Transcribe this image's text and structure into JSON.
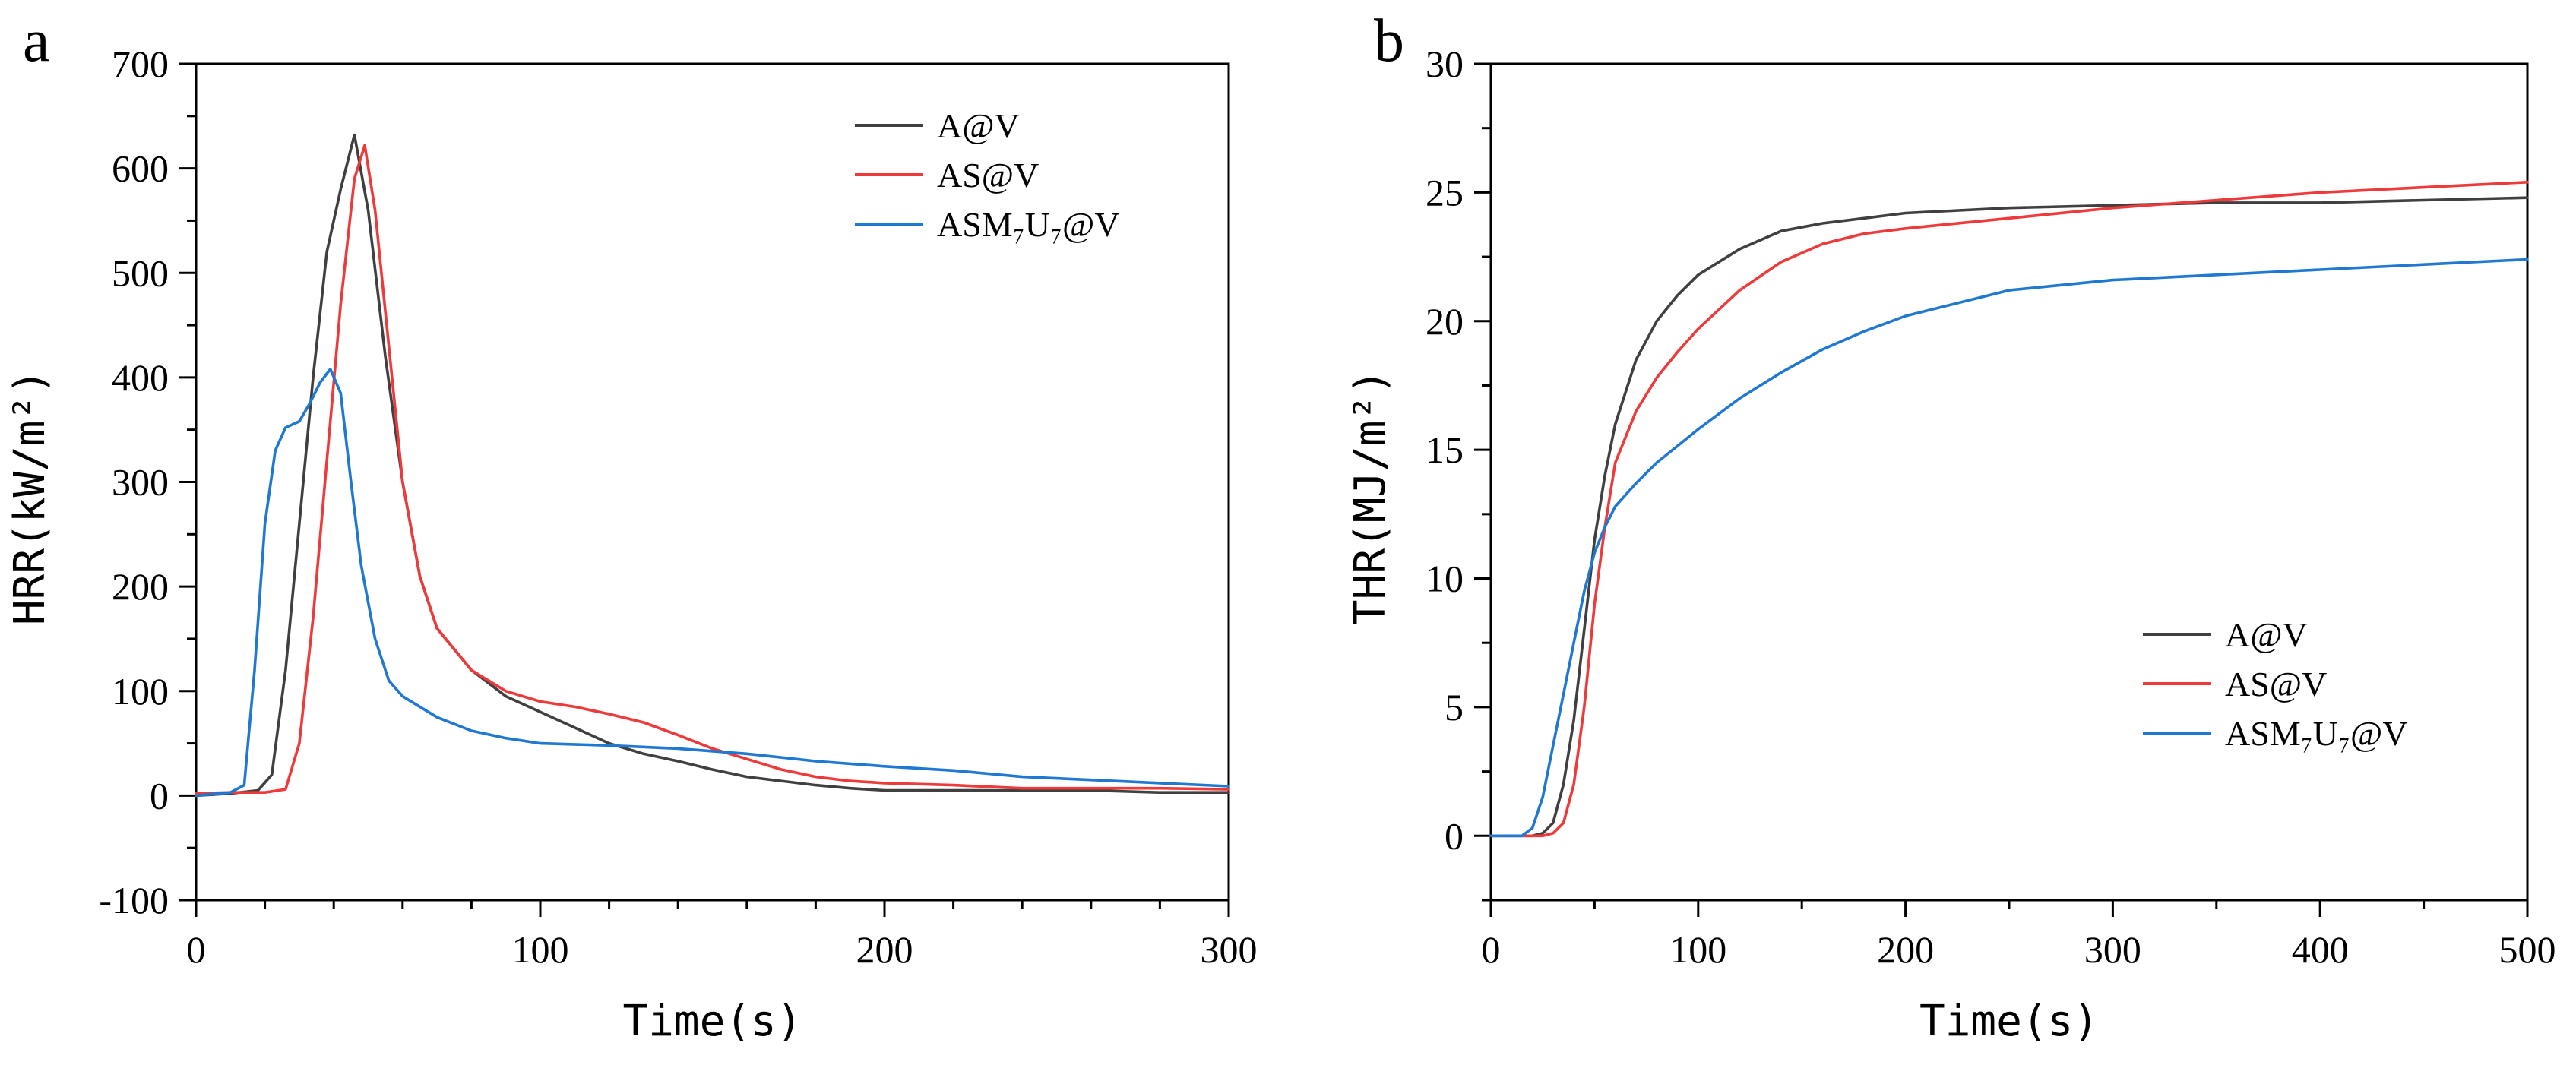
{
  "chart_data": [
    {
      "panel": "a",
      "type": "line",
      "xlabel": "Time(s)",
      "ylabel": "HRR(kW/m²)",
      "xlim": [
        0,
        300
      ],
      "ylim": [
        -100,
        700
      ],
      "xticks": [
        0,
        100,
        200,
        300
      ],
      "yticks": [
        -100,
        0,
        100,
        200,
        300,
        400,
        500,
        600,
        700
      ],
      "grid": false,
      "legend_position": "top-right",
      "series": [
        {
          "name": "A@V",
          "color": "#404040",
          "x": [
            0,
            10,
            18,
            22,
            26,
            30,
            34,
            38,
            42,
            46,
            50,
            55,
            60,
            65,
            70,
            80,
            90,
            100,
            110,
            120,
            130,
            140,
            150,
            160,
            170,
            180,
            190,
            200,
            220,
            240,
            260,
            280,
            300
          ],
          "y": [
            0,
            2,
            5,
            20,
            120,
            260,
            400,
            520,
            580,
            632,
            560,
            420,
            300,
            210,
            160,
            120,
            95,
            80,
            65,
            50,
            40,
            33,
            25,
            18,
            14,
            10,
            7,
            5,
            5,
            5,
            5,
            3,
            3
          ]
        },
        {
          "name": "AS@V",
          "color": "#ee3a3a",
          "x": [
            0,
            10,
            20,
            26,
            30,
            34,
            38,
            42,
            46,
            49,
            52,
            56,
            60,
            65,
            70,
            80,
            90,
            100,
            110,
            120,
            130,
            140,
            150,
            160,
            170,
            180,
            190,
            200,
            220,
            240,
            260,
            280,
            300
          ],
          "y": [
            2,
            3,
            3,
            6,
            50,
            170,
            320,
            470,
            590,
            622,
            560,
            430,
            300,
            210,
            160,
            120,
            100,
            90,
            85,
            78,
            70,
            58,
            45,
            35,
            25,
            18,
            14,
            12,
            10,
            7,
            7,
            7,
            6
          ]
        },
        {
          "name": "ASM₇U₇@V",
          "color": "#1f78d1",
          "x": [
            0,
            10,
            14,
            17,
            20,
            23,
            26,
            30,
            33,
            36,
            39,
            42,
            45,
            48,
            52,
            56,
            60,
            65,
            70,
            80,
            90,
            100,
            120,
            140,
            160,
            180,
            200,
            220,
            240,
            260,
            280,
            300
          ],
          "y": [
            0,
            3,
            10,
            120,
            260,
            330,
            352,
            358,
            375,
            395,
            408,
            385,
            300,
            220,
            150,
            110,
            95,
            85,
            75,
            62,
            55,
            50,
            48,
            45,
            40,
            33,
            28,
            24,
            18,
            15,
            12,
            9
          ]
        }
      ]
    },
    {
      "panel": "b",
      "type": "line",
      "xlabel": "Time(s)",
      "ylabel": "THR(MJ/m²)",
      "xlim": [
        0,
        500
      ],
      "ylim": [
        -2.5,
        30
      ],
      "xticks": [
        0,
        100,
        200,
        300,
        400,
        500
      ],
      "yticks": [
        0,
        5,
        10,
        15,
        20,
        25,
        30
      ],
      "grid": false,
      "legend_position": "center-right",
      "series": [
        {
          "name": "A@V",
          "color": "#404040",
          "x": [
            0,
            20,
            25,
            30,
            35,
            40,
            45,
            50,
            55,
            60,
            70,
            80,
            90,
            100,
            120,
            140,
            160,
            180,
            200,
            250,
            300,
            350,
            400,
            450,
            500
          ],
          "y": [
            0,
            0,
            0.1,
            0.5,
            2,
            4.5,
            8,
            11.5,
            14,
            16,
            18.5,
            20,
            21,
            21.8,
            22.8,
            23.5,
            23.8,
            24,
            24.2,
            24.4,
            24.5,
            24.6,
            24.6,
            24.7,
            24.8
          ]
        },
        {
          "name": "AS@V",
          "color": "#ee3a3a",
          "x": [
            0,
            25,
            30,
            35,
            40,
            45,
            50,
            55,
            60,
            70,
            80,
            90,
            100,
            120,
            140,
            160,
            180,
            200,
            250,
            300,
            350,
            400,
            450,
            500
          ],
          "y": [
            0,
            0,
            0.1,
            0.5,
            2,
            5,
            9,
            12,
            14.5,
            16.5,
            17.8,
            18.8,
            19.7,
            21.2,
            22.3,
            23,
            23.4,
            23.6,
            24,
            24.4,
            24.7,
            25,
            25.2,
            25.4
          ]
        },
        {
          "name": "ASM₇U₇@V",
          "color": "#1f78d1",
          "x": [
            0,
            15,
            20,
            25,
            30,
            35,
            40,
            45,
            50,
            55,
            60,
            70,
            80,
            100,
            120,
            140,
            160,
            180,
            200,
            250,
            300,
            350,
            400,
            450,
            500
          ],
          "y": [
            0,
            0,
            0.3,
            1.5,
            3.5,
            5.5,
            7.5,
            9.5,
            11,
            12,
            12.8,
            13.7,
            14.5,
            15.8,
            17,
            18,
            18.9,
            19.6,
            20.2,
            21.2,
            21.6,
            21.8,
            22,
            22.2,
            22.4
          ]
        }
      ]
    }
  ]
}
